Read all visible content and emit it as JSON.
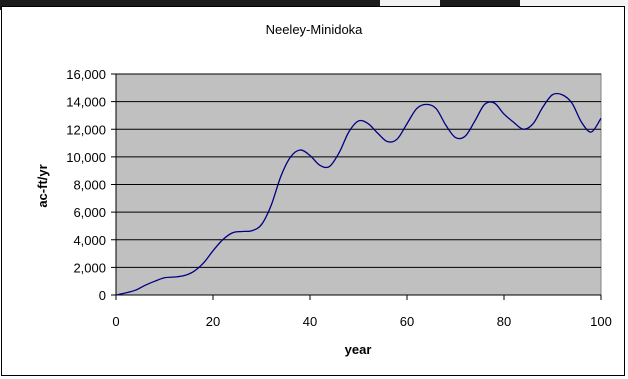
{
  "chart_data": {
    "type": "line",
    "title": "Neeley-Minidoka",
    "xlabel": "year",
    "ylabel": "ac-ft/yr",
    "xlim": [
      0,
      100
    ],
    "ylim": [
      0,
      16000
    ],
    "xticks": [
      0,
      20,
      40,
      60,
      80,
      100
    ],
    "yticks": [
      0,
      2000,
      4000,
      6000,
      8000,
      10000,
      12000,
      14000,
      16000
    ],
    "xtick_labels": [
      "0",
      "20",
      "40",
      "60",
      "80",
      "100"
    ],
    "ytick_labels": [
      "0",
      "2,000",
      "4,000",
      "6,000",
      "8,000",
      "10,000",
      "12,000",
      "14,000",
      "16,000"
    ],
    "grid": "horizontal",
    "legend": "none",
    "colors": {
      "line": "#000080",
      "plot_background": "#c0c0c0",
      "gridline": "#000000"
    },
    "series": [
      {
        "x": [
          0,
          2,
          4,
          6,
          8,
          10,
          12,
          14,
          16,
          18,
          20,
          22,
          24,
          26,
          28,
          30,
          32,
          34,
          36,
          38,
          40,
          42,
          44,
          46,
          48,
          50,
          52,
          54,
          56,
          58,
          60,
          62,
          64,
          66,
          68,
          70,
          72,
          74,
          76,
          78,
          80,
          82,
          84,
          86,
          88,
          90,
          92,
          94,
          96,
          98,
          100
        ],
        "y": [
          0,
          150,
          350,
          700,
          1000,
          1250,
          1300,
          1400,
          1700,
          2300,
          3200,
          4000,
          4500,
          4600,
          4650,
          5100,
          6500,
          8600,
          10000,
          10500,
          10100,
          9400,
          9300,
          10300,
          11800,
          12600,
          12400,
          11700,
          11100,
          11300,
          12400,
          13500,
          13800,
          13500,
          12300,
          11400,
          11500,
          12600,
          13800,
          13900,
          13100,
          12500,
          12000,
          12400,
          13600,
          14500,
          14500,
          13900,
          12500,
          11800,
          12800
        ]
      }
    ]
  }
}
